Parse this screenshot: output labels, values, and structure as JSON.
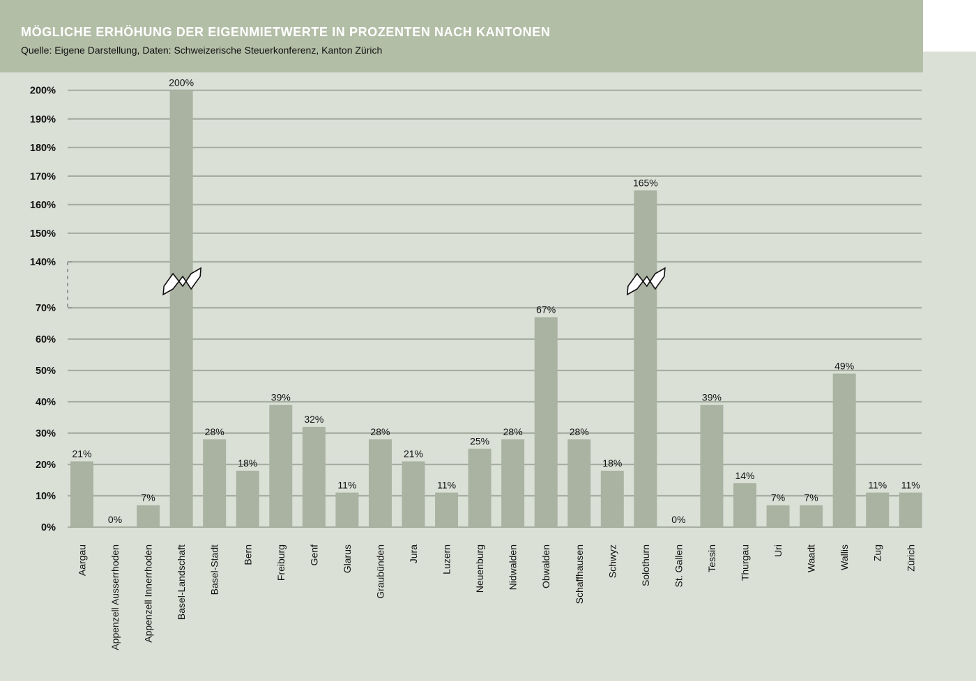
{
  "header": {
    "title": "MÖGLICHE ERHÖHUNG DER EIGENMIETWERTE IN PROZENTEN NACH KANTONEN",
    "subtitle": "Quelle: Eigene Darstellung, Daten: Schweizerische Steuerkonferenz, Kanton Zürich"
  },
  "colors": {
    "header_bg": "#b3bea7",
    "panel_bg": "#dbe0d7",
    "bar": "#aab3a2",
    "grid": "#a7aea1"
  },
  "chart_data": {
    "type": "bar",
    "title": "MÖGLICHE ERHÖHUNG DER EIGENMIETWERTE IN PROZENTEN NACH KANTONEN",
    "subtitle": "Quelle: Eigene Darstellung, Daten: Schweizerische Steuerkonferenz, Kanton Zürich",
    "categories": [
      "Aargau",
      "Appenzell Ausserrhoden",
      "Appenzell Innerrhoden",
      "Basel-Landschaft",
      "Basel-Stadt",
      "Bern",
      "Freiburg",
      "Genf",
      "Glarus",
      "Graubünden",
      "Jura",
      "Luzern",
      "Neuenburg",
      "Nidwalden",
      "Obwalden",
      "Schaffhausen",
      "Schwyz",
      "Solothurn",
      "St. Gallen",
      "Tessin",
      "Thurgau",
      "Uri",
      "Waadt",
      "Wallis",
      "Zug",
      "Zürich"
    ],
    "values": [
      21,
      0,
      7,
      200,
      28,
      18,
      39,
      32,
      11,
      28,
      21,
      11,
      25,
      28,
      67,
      28,
      18,
      165,
      0,
      39,
      14,
      7,
      7,
      49,
      11,
      11
    ],
    "value_labels": [
      "21%",
      "0%",
      "7%",
      "200%",
      "28%",
      "18%",
      "39%",
      "32%",
      "11%",
      "28%",
      "21%",
      "11%",
      "25%",
      "28%",
      "67%",
      "28%",
      "18%",
      "165%",
      "0%",
      "39%",
      "14%",
      "7%",
      "7%",
      "49%",
      "11%",
      "11%"
    ],
    "y_ticks_lower": [
      0,
      10,
      20,
      30,
      40,
      50,
      60,
      70
    ],
    "y_ticks_upper": [
      140,
      150,
      160,
      170,
      180,
      190,
      200
    ],
    "y_tick_labels_lower": [
      "0%",
      "10%",
      "20%",
      "30%",
      "40%",
      "50%",
      "60%",
      "70%"
    ],
    "y_tick_labels_upper": [
      "140%",
      "150%",
      "160%",
      "170%",
      "180%",
      "190%",
      "200%"
    ],
    "axis_break": [
      70,
      140
    ],
    "ylim": [
      0,
      200
    ],
    "grid": true,
    "legend": "none",
    "xlabel": "",
    "ylabel": ""
  }
}
